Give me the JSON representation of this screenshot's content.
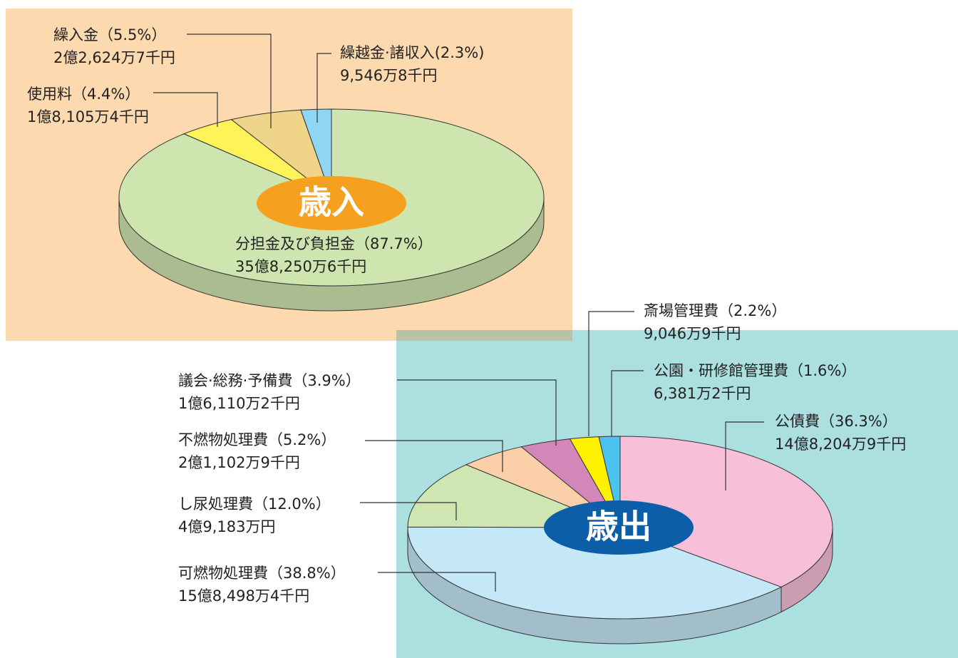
{
  "chart_data": [
    {
      "type": "pie",
      "title": "歳入",
      "categories": [
        "分担金及び負担金",
        "使用料",
        "繰入金",
        "繰越金·諸収入"
      ],
      "values": [
        87.7,
        4.4,
        5.5,
        2.3
      ],
      "value_labels": [
        "（87.7%）",
        "（4.4%）",
        "（5.5%）",
        "(2.3%)"
      ],
      "amounts": [
        "35億8,250万6千円",
        "1億8,105万4千円",
        "2億2,624万7千円",
        "9,546万8千円"
      ],
      "colors": [
        "#cfe5b0",
        "#fff35a",
        "#f0d48a",
        "#8fd6f5"
      ],
      "badge_color": "#f5a01e"
    },
    {
      "type": "pie",
      "title": "歳出",
      "categories": [
        "公債費",
        "可燃物処理費",
        "し尿処理費",
        "不燃物処理費",
        "議会·総務·予備費",
        "斎場管理費",
        "公園・研修館管理費"
      ],
      "values": [
        36.3,
        38.8,
        12.0,
        5.2,
        3.9,
        2.2,
        1.6
      ],
      "value_labels": [
        "（36.3%）",
        "（38.8%）",
        "（12.0%）",
        "（5.2%）",
        "（3.9%）",
        "（2.2%）",
        "（1.6%）"
      ],
      "amounts": [
        "14億8,204万9千円",
        "15億8,498万4千円",
        "4億9,183万円",
        "2億1,102万9千円",
        "1億6,110万2千円",
        "9,046万9千円",
        "6,381万2千円"
      ],
      "colors": [
        "#f7c0d8",
        "#c5e8f8",
        "#cfe6b2",
        "#fbd0a8",
        "#d387b8",
        "#fff200",
        "#4cc3ef"
      ],
      "badge_color": "#0d5ea8"
    }
  ]
}
